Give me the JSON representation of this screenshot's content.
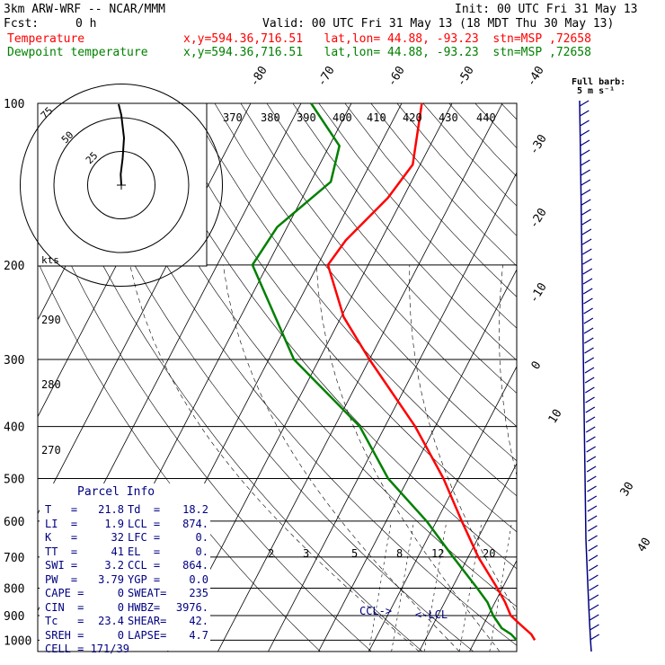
{
  "header": {
    "model": "3km ARW-WRF -- NCAR/MMM",
    "init": "Init: 00 UTC Fri 31 May 13",
    "fcst_label": "Fcst:",
    "fcst_value": "0 h",
    "valid": "Valid: 00 UTC Fri 31 May 13 (18 MDT Thu 30 May 13)",
    "temp_label": "Temperature",
    "temp_loc": "x,y=594.36,716.51   lat,lon= 44.88, -93.23  stn=MSP ,72658",
    "dew_label": "Dewpoint temperature",
    "dew_loc": "x,y=594.36,716.51   lat,lon= 44.88, -93.23  stn=MSP ,72658",
    "barb_legend_1": "Full barb:",
    "barb_legend_2": "5 m s⁻¹",
    "colors": {
      "temperature": "#ff0000",
      "dewpoint": "#008000",
      "title": "#000000",
      "wind": "#000080"
    }
  },
  "chart_data": {
    "type": "line",
    "chart_kind": "skew-T log-P sounding",
    "y_axis_log": true,
    "pressure_levels": [
      "100",
      "200",
      "300",
      "400",
      "500",
      "600",
      "700",
      "800",
      "900",
      "1000"
    ],
    "skew_temp_labels": [
      "-80",
      "-70",
      "-60",
      "-50",
      "-40",
      "-30",
      "-20",
      "-10",
      "0",
      "10",
      "30",
      "40"
    ],
    "theta_labels": [
      "370",
      "380",
      "390",
      "400",
      "410",
      "420",
      "430",
      "440",
      "290",
      "280",
      "270"
    ],
    "mixing_ratio_labels": [
      "2",
      "3",
      "5",
      "8",
      "12",
      "20"
    ],
    "series": [
      {
        "name": "Temperature",
        "p": [
          1000,
          975,
          950,
          925,
          900,
          850,
          800,
          700,
          600,
          500,
          400,
          300,
          250,
          200,
          180,
          150,
          130,
          100
        ],
        "t": [
          21.8,
          20.5,
          18.5,
          16.5,
          14.5,
          12.0,
          9.0,
          2.0,
          -5.0,
          -13.0,
          -24.0,
          -40.0,
          -49.5,
          -58.0,
          -57.0,
          -53.0,
          -51.5,
          -56.0
        ]
      },
      {
        "name": "Dewpoint temperature",
        "p": [
          1000,
          975,
          950,
          900,
          850,
          800,
          700,
          600,
          500,
          400,
          300,
          200,
          170,
          140,
          120,
          100
        ],
        "t": [
          18.2,
          16.5,
          14.0,
          11.0,
          8.5,
          5.0,
          -3.0,
          -12.0,
          -24.0,
          -35.0,
          -55.0,
          -73.0,
          -72.0,
          -66.0,
          -68.0,
          -78.0
        ]
      }
    ],
    "hodograph": {
      "unit_label": "kts",
      "ring_labels": [
        "25",
        "50",
        "75"
      ],
      "trace_x": [
        0,
        -0.5,
        1,
        2,
        0,
        -2
      ],
      "trace_y": [
        0,
        8,
        20,
        35,
        52,
        60
      ]
    },
    "annotations": {
      "ccl": "CCL->",
      "lcl": "<-LCL"
    }
  },
  "parcel": {
    "title": "Parcel Info",
    "rows": [
      {
        "a": "T   =",
        "av": "21.8",
        "b": "Td  =",
        "bv": "18.2"
      },
      {
        "a": "LI  =",
        "av": "1.9",
        "b": "LCL =",
        "bv": "874."
      },
      {
        "a": "K   =",
        "av": "32",
        "b": "LFC =",
        "bv": "0."
      },
      {
        "a": "TT  =",
        "av": "41",
        "b": "EL  =",
        "bv": "0."
      },
      {
        "a": "SWI =",
        "av": "3.2",
        "b": "CCL =",
        "bv": "864."
      },
      {
        "a": "PW  =",
        "av": "3.79",
        "b": "YGP =",
        "bv": "0.0"
      },
      {
        "a": "CAPE =",
        "av": "0",
        "b": "SWEAT=",
        "bv": "235"
      },
      {
        "a": "CIN  =",
        "av": "0",
        "b": "HWBZ=",
        "bv": "3976."
      },
      {
        "a": "Tc   =",
        "av": "23.4",
        "b": "SHEAR=",
        "bv": "42."
      },
      {
        "a": "SREH =",
        "av": "0",
        "b": "LAPSE=",
        "bv": "4.7"
      }
    ],
    "cell": "CELL = 171/39"
  }
}
